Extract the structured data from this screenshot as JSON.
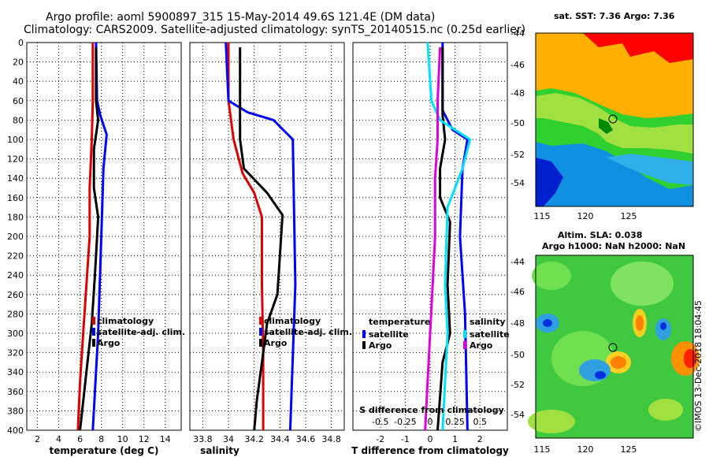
{
  "title_line1": "Argo profile: aoml 5900897_315 15-May-2014 49.6S 121.4E (DM data)",
  "title_line2": "Climatology: CARS2009. Satellite-adjusted climatology: synTS_20140515.nc (0.25d earlier)",
  "colors": {
    "red": "#e00000",
    "blue": "#0000ff",
    "black": "#000000",
    "cyan": "#00e0ff",
    "magenta": "#e000e0"
  },
  "chart_data": [
    {
      "id": "temperature",
      "type": "line",
      "xlabel": "temperature (deg C)",
      "xlim": [
        1,
        15.5
      ],
      "ylim": [
        0,
        400
      ],
      "xticks": [
        "2",
        "4",
        "6",
        "8",
        "10",
        "12",
        "14"
      ],
      "xtick_values": [
        2,
        4,
        6,
        8,
        10,
        12,
        14
      ],
      "yticks": [
        "0",
        "20",
        "40",
        "60",
        "80",
        "100",
        "120",
        "140",
        "160",
        "180",
        "200",
        "220",
        "240",
        "260",
        "280",
        "300",
        "320",
        "340",
        "360",
        "380",
        "400"
      ],
      "legend": [
        "climatology",
        "satellite-adj. clim.",
        "Argo"
      ],
      "series": [
        {
          "name": "climatology",
          "color": "red",
          "points": [
            [
              7.2,
              0
            ],
            [
              7.2,
              60
            ],
            [
              7.1,
              100
            ],
            [
              6.9,
              150
            ],
            [
              6.9,
              200
            ],
            [
              6.6,
              250
            ],
            [
              6.3,
              300
            ],
            [
              6.0,
              350
            ],
            [
              5.8,
              400
            ]
          ]
        },
        {
          "name": "satellite-adj. clim.",
          "color": "blue",
          "points": [
            [
              7.5,
              0
            ],
            [
              7.6,
              60
            ],
            [
              7.9,
              75
            ],
            [
              8.5,
              95
            ],
            [
              8.2,
              130
            ],
            [
              8.0,
              200
            ],
            [
              7.7,
              300
            ],
            [
              7.2,
              400
            ]
          ]
        },
        {
          "name": "Argo",
          "color": "black",
          "points": [
            [
              7.5,
              5
            ],
            [
              7.5,
              60
            ],
            [
              7.7,
              80
            ],
            [
              7.3,
              110
            ],
            [
              7.3,
              150
            ],
            [
              7.7,
              180
            ],
            [
              7.4,
              240
            ],
            [
              7.1,
              290
            ],
            [
              6.8,
              320
            ],
            [
              6.4,
              360
            ],
            [
              6.0,
              400
            ]
          ]
        }
      ]
    },
    {
      "id": "salinity",
      "type": "line",
      "xlabel": "salinity",
      "xlim": [
        33.7,
        34.9
      ],
      "ylim": [
        0,
        400
      ],
      "xticks": [
        "33.8",
        "34",
        "34.2",
        "34.4",
        "34.6",
        "34.8"
      ],
      "xtick_values": [
        33.8,
        34,
        34.2,
        34.4,
        34.6,
        34.8
      ],
      "legend": [
        "climatology",
        "satellite-adj. clim.",
        "Argo"
      ],
      "series": [
        {
          "name": "climatology",
          "color": "red",
          "points": [
            [
              34.0,
              0
            ],
            [
              34.0,
              60
            ],
            [
              34.04,
              100
            ],
            [
              34.11,
              135
            ],
            [
              34.2,
              155
            ],
            [
              34.26,
              180
            ],
            [
              34.26,
              250
            ],
            [
              34.27,
              320
            ],
            [
              34.27,
              400
            ]
          ]
        },
        {
          "name": "satellite-adj. clim.",
          "color": "blue",
          "points": [
            [
              33.98,
              0
            ],
            [
              34.0,
              60
            ],
            [
              34.15,
              72
            ],
            [
              34.35,
              80
            ],
            [
              34.5,
              100
            ],
            [
              34.52,
              250
            ],
            [
              34.48,
              400
            ]
          ]
        },
        {
          "name": "Argo",
          "color": "black",
          "points": [
            [
              34.09,
              5
            ],
            [
              34.09,
              60
            ],
            [
              34.09,
              100
            ],
            [
              34.12,
              130
            ],
            [
              34.3,
              155
            ],
            [
              34.42,
              178
            ],
            [
              34.4,
              220
            ],
            [
              34.38,
              260
            ],
            [
              34.3,
              290
            ],
            [
              34.26,
              330
            ],
            [
              34.22,
              370
            ],
            [
              34.2,
              400
            ]
          ]
        }
      ]
    },
    {
      "id": "difference",
      "type": "line",
      "xlabel": "T difference from climatology",
      "xlabel_top": "S difference from climatology",
      "xlim": [
        -3.1,
        3.1
      ],
      "ylim": [
        0,
        400
      ],
      "xticks": [
        "-2",
        "-1",
        "0",
        "1",
        "2"
      ],
      "xtick_values": [
        -2,
        -1,
        0,
        1,
        2
      ],
      "xticks_top": [
        "-0.5",
        "-0.25",
        "0",
        "0.25",
        "0.5"
      ],
      "xticks_top_values": [
        -2,
        -1,
        0,
        1,
        2
      ],
      "legend_left_title": "temperature",
      "legend_right_title": "salinity",
      "legend_left": [
        "satellite",
        "Argo"
      ],
      "legend_right": [
        "satellite",
        "Argo"
      ],
      "series": [
        {
          "name": "T satellite",
          "color": "blue",
          "points": [
            [
              0.5,
              0
            ],
            [
              0.5,
              70
            ],
            [
              0.9,
              90
            ],
            [
              1.5,
              100
            ],
            [
              1.3,
              130
            ],
            [
              1.2,
              200
            ],
            [
              1.4,
              280
            ],
            [
              1.5,
              400
            ]
          ]
        },
        {
          "name": "T Argo",
          "color": "black",
          "points": [
            [
              0.5,
              5
            ],
            [
              0.5,
              75
            ],
            [
              0.6,
              100
            ],
            [
              0.4,
              130
            ],
            [
              0.4,
              160
            ],
            [
              0.8,
              185
            ],
            [
              0.7,
              250
            ],
            [
              0.8,
              300
            ],
            [
              0.5,
              330
            ],
            [
              0.3,
              400
            ]
          ]
        },
        {
          "name": "S satellite",
          "color": "cyan",
          "points": [
            [
              -0.1,
              0
            ],
            [
              0.05,
              60
            ],
            [
              0.4,
              80
            ],
            [
              1.6,
              100
            ],
            [
              1.3,
              130
            ],
            [
              0.7,
              170
            ],
            [
              0.6,
              250
            ],
            [
              0.7,
              300
            ],
            [
              0.6,
              350
            ],
            [
              0.5,
              400
            ]
          ]
        },
        {
          "name": "S Argo",
          "color": "magenta",
          "points": [
            [
              0.4,
              5
            ],
            [
              0.3,
              60
            ],
            [
              0.3,
              100
            ],
            [
              0.2,
              140
            ],
            [
              0.2,
              200
            ],
            [
              0.1,
              250
            ],
            [
              0.0,
              300
            ],
            [
              -0.1,
              350
            ],
            [
              -0.2,
              400
            ]
          ]
        }
      ]
    }
  ],
  "sst_map": {
    "title": "sat. SST: 7.36 Argo: 7.36",
    "xticks": [
      "115",
      "120",
      "125"
    ],
    "yticks": [
      "-44",
      "-46",
      "-48",
      "-50",
      "-52",
      "-54"
    ],
    "profile_lon": 121.4,
    "profile_lat": -49.6
  },
  "sla_map": {
    "title1": "Altim. SLA: 0.038",
    "title2": "Argo h1000: NaN h2000: NaN",
    "xticks": [
      "115",
      "120",
      "125"
    ],
    "yticks": [
      "-44",
      "-46",
      "-48",
      "-50",
      "-52",
      "-54"
    ],
    "profile_lon": 121.4,
    "profile_lat": -49.6
  },
  "credit": "©IMOS 13-Dec-2018 18:04:45"
}
